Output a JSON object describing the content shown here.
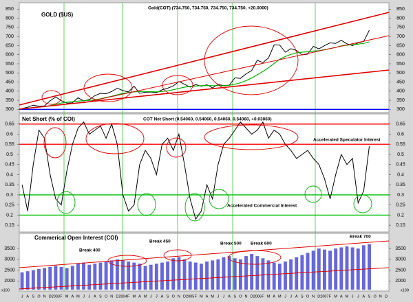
{
  "chart_data": [
    {
      "type": "line",
      "title": "GOLD ($US)",
      "subtitle": "Gold(COT) (734.750, 734.750, 734.750, 734.750, +20.0000)",
      "ylim": [
        290,
        870
      ],
      "yticks": [
        300,
        350,
        400,
        450,
        500,
        550,
        600,
        650,
        700,
        750,
        800,
        850
      ],
      "hlines": [
        {
          "value": 300,
          "color": "#0000ff"
        }
      ],
      "series": [
        {
          "color": "#000000",
          "values": [
            305,
            312,
            323,
            317,
            319,
            347,
            368,
            348,
            334,
            336,
            364,
            346,
            354,
            375,
            388,
            386,
            398,
            416,
            403,
            396,
            427,
            388,
            394,
            395,
            391,
            407,
            416,
            429,
            453,
            438,
            422,
            436,
            427,
            435,
            418,
            437,
            430,
            433,
            473,
            470,
            495,
            513,
            569,
            557,
            582,
            654,
            653,
            614,
            633,
            623,
            599,
            603,
            646,
            632,
            650,
            665,
            662,
            679,
            660,
            650,
            665,
            673,
            734,
            null,
            null,
            null
          ]
        },
        {
          "color": "#00b000",
          "values": [
            305,
            307,
            310,
            313,
            315,
            320,
            328,
            335,
            340,
            342,
            345,
            348,
            350,
            352,
            358,
            365,
            372,
            380,
            388,
            392,
            396,
            398,
            398,
            397,
            396,
            398,
            402,
            408,
            415,
            422,
            426,
            428,
            430,
            431,
            430,
            430,
            430,
            432,
            438,
            446,
            458,
            472,
            490,
            508,
            528,
            552,
            575,
            590,
            602,
            610,
            614,
            616,
            620,
            622,
            628,
            634,
            640,
            648,
            652,
            655,
            658,
            662,
            670,
            null,
            null,
            null
          ]
        }
      ]
    },
    {
      "type": "line",
      "title": "Net Short (% of COI)",
      "subtitle": "COT Net Short (0.54060, 0.54060, 0.54060, 0.54060, +0.03060)",
      "annotations": [
        "Accelerated Speculator Interest",
        "Accelerated Commercial Interest"
      ],
      "ylim": [
        0.12,
        0.7
      ],
      "yticks": [
        0.15,
        0.2,
        0.25,
        0.3,
        0.35,
        0.4,
        0.45,
        0.5,
        0.55,
        0.6,
        0.65
      ],
      "hlines": [
        {
          "value": 0.65,
          "color": "#ff0000"
        },
        {
          "value": 0.55,
          "color": "#ff0000"
        },
        {
          "value": 0.3,
          "color": "#00c000"
        },
        {
          "value": 0.2,
          "color": "#00c000"
        }
      ],
      "series": [
        {
          "color": "#000000",
          "values": [
            0.35,
            0.22,
            0.45,
            0.62,
            0.58,
            0.4,
            0.28,
            0.25,
            0.42,
            0.55,
            0.63,
            0.66,
            0.6,
            0.62,
            0.64,
            0.58,
            0.65,
            0.55,
            0.3,
            0.22,
            0.25,
            0.45,
            0.52,
            0.48,
            0.4,
            0.55,
            0.58,
            0.52,
            0.6,
            0.45,
            0.28,
            0.18,
            0.22,
            0.35,
            0.28,
            0.45,
            0.55,
            0.58,
            0.62,
            0.66,
            0.63,
            0.6,
            0.62,
            0.66,
            0.58,
            0.62,
            0.6,
            0.55,
            0.52,
            0.48,
            0.5,
            0.52,
            0.48,
            0.45,
            0.38,
            0.28,
            0.4,
            0.5,
            0.45,
            0.48,
            0.26,
            0.32,
            0.54,
            null,
            null,
            null
          ]
        }
      ]
    },
    {
      "type": "bar",
      "title": "Commerical Open Interest (COI)",
      "scale_note": "x100",
      "annotations": [
        "Break 400",
        "Break 450",
        "Break 500",
        "Break 600",
        "Break 700"
      ],
      "ylim": [
        1600,
        4200
      ],
      "yticks": [
        2000,
        2500,
        3000,
        3500
      ],
      "color": "#6666dd",
      "categories": [
        "J",
        "A",
        "S",
        "O",
        "N",
        "D",
        "2003",
        "F",
        "M",
        "A",
        "M",
        "J",
        "J",
        "A",
        "S",
        "O",
        "N",
        "D",
        "2004",
        "F",
        "M",
        "A",
        "M",
        "J",
        "J",
        "A",
        "S",
        "O",
        "N",
        "D",
        "2005",
        "F",
        "M",
        "A",
        "M",
        "J",
        "J",
        "A",
        "S",
        "O",
        "N",
        "D",
        "2006",
        "F",
        "M",
        "A",
        "M",
        "J",
        "J",
        "A",
        "S",
        "O",
        "N",
        "D",
        "2007",
        "F",
        "M",
        "A",
        "M",
        "J",
        "J",
        "A",
        "S",
        "O",
        "N",
        "D"
      ],
      "values": [
        2400,
        2450,
        2500,
        2550,
        2600,
        2650,
        2700,
        2650,
        2600,
        2700,
        2800,
        2850,
        2750,
        2800,
        2850,
        2900,
        2950,
        3000,
        2950,
        2900,
        2850,
        2800,
        2700,
        2750,
        2800,
        2850,
        2900,
        3050,
        3100,
        3000,
        2900,
        2850,
        2800,
        2900,
        2950,
        3000,
        3100,
        3150,
        3050,
        3000,
        3150,
        3250,
        3150,
        3050,
        2950,
        2850,
        2800,
        2900,
        3000,
        3100,
        3200,
        3300,
        3400,
        3500,
        3450,
        3400,
        3500,
        3550,
        3600,
        3550,
        3500,
        3650,
        3700,
        null,
        null,
        null
      ]
    }
  ]
}
